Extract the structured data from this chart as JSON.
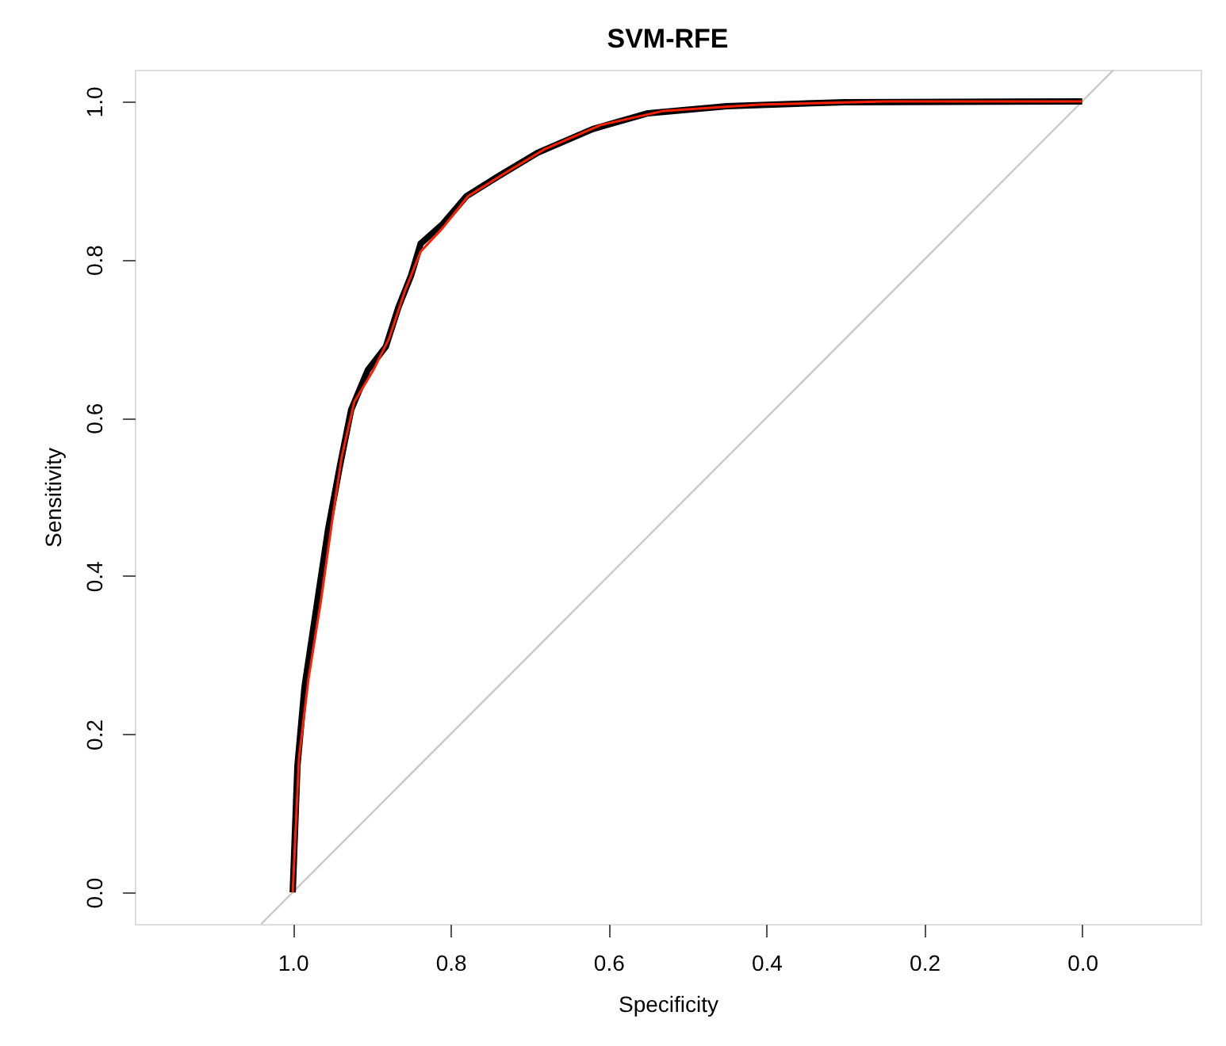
{
  "chart_data": {
    "type": "line",
    "title": "SVM-RFE",
    "xlabel": "Specificity",
    "ylabel": "Sensitivity",
    "xlim": [
      1.2,
      -0.15
    ],
    "ylim": [
      -0.04,
      1.04
    ],
    "xticks": [
      {
        "value": 1,
        "label": "1.0"
      },
      0.8,
      0.6,
      0.4,
      0.2,
      {
        "value": 0,
        "label": "0.0"
      }
    ],
    "yticks": [
      {
        "value": 0,
        "label": "0.0"
      },
      0.2,
      0.4,
      0.6,
      0.8,
      {
        "value": 1,
        "label": "1.0"
      }
    ],
    "grid": false,
    "marker": "none",
    "line_style": "solid",
    "series": [
      {
        "color": "#c8c8c8",
        "x": [
          1.04,
          -0.04
        ],
        "values": [
          -0.04,
          1.04
        ]
      },
      {
        "color": "#000000",
        "x": [
          1.0,
          0.994,
          0.985,
          0.97,
          0.955,
          0.94,
          0.926,
          0.905,
          0.882,
          0.866,
          0.85,
          0.838,
          0.81,
          0.78,
          0.74,
          0.69,
          0.62,
          0.55,
          0.45,
          0.3,
          0.0
        ],
        "values": [
          0.0,
          0.16,
          0.26,
          0.36,
          0.46,
          0.54,
          0.61,
          0.66,
          0.69,
          0.74,
          0.78,
          0.82,
          0.845,
          0.88,
          0.905,
          0.935,
          0.965,
          0.985,
          0.994,
          0.999,
          1.0
        ]
      },
      {
        "color": "#ff2000",
        "x": [
          1.0,
          0.992,
          0.98,
          0.964,
          0.95,
          0.938,
          0.922,
          0.898,
          0.878,
          0.858,
          0.838,
          0.81,
          0.778,
          0.73,
          0.68,
          0.61,
          0.53,
          0.41,
          0.25,
          0.0
        ],
        "values": [
          0.0,
          0.17,
          0.27,
          0.37,
          0.47,
          0.55,
          0.62,
          0.66,
          0.7,
          0.76,
          0.81,
          0.84,
          0.88,
          0.91,
          0.94,
          0.97,
          0.988,
          0.996,
          1.0,
          1.0
        ]
      }
    ]
  }
}
